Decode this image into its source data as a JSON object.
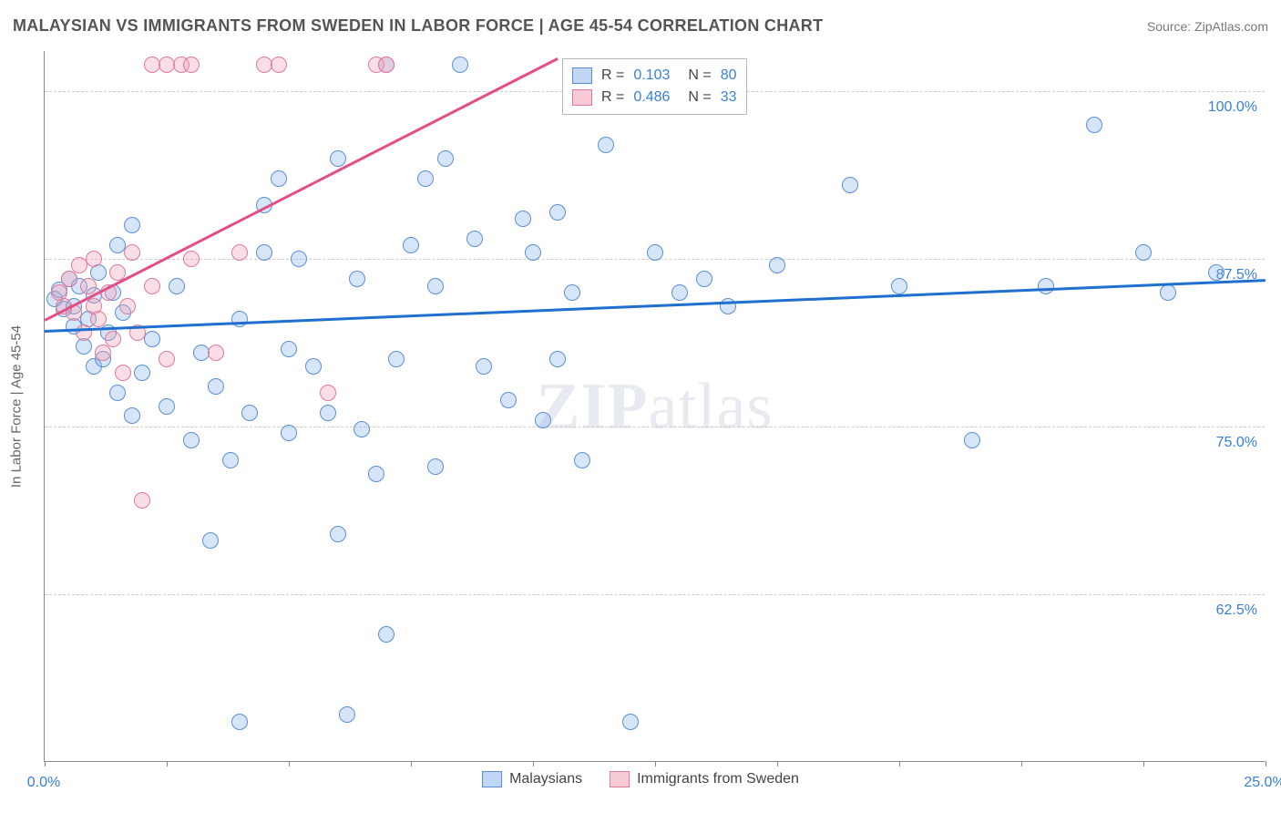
{
  "title": "MALAYSIAN VS IMMIGRANTS FROM SWEDEN IN LABOR FORCE | AGE 45-54 CORRELATION CHART",
  "source_label": "Source: ZipAtlas.com",
  "y_axis_title": "In Labor Force | Age 45-54",
  "watermark_bold": "ZIP",
  "watermark_rest": "atlas",
  "chart": {
    "type": "scatter",
    "xlim": [
      0,
      25
    ],
    "ylim": [
      50,
      103
    ],
    "x_ticks": [
      0,
      2.5,
      5,
      7.5,
      10,
      12.5,
      15,
      17.5,
      20,
      22.5,
      25
    ],
    "x_tick_labels": {
      "0": "0.0%",
      "25": "25.0%"
    },
    "y_ticks": [
      62.5,
      75.0,
      87.5,
      100.0
    ],
    "y_tick_labels": [
      "62.5%",
      "75.0%",
      "87.5%",
      "100.0%"
    ],
    "grid_color": "#cccccc",
    "background_color": "#ffffff",
    "axis_color": "#888888",
    "label_color": "#377fd9",
    "marker_radius": 9,
    "marker_stroke_width": 1.2,
    "series": [
      {
        "name": "Malaysians",
        "fill": "rgba(140,180,235,0.35)",
        "stroke": "#5a8fd6",
        "trend_color": "#1f6fd0",
        "R": 0.103,
        "N": 80,
        "trend": {
          "x1": 0,
          "y1": 82.2,
          "x2": 25,
          "y2": 86.0
        },
        "points": [
          [
            0.2,
            84.5
          ],
          [
            0.3,
            85.2
          ],
          [
            0.4,
            83.8
          ],
          [
            0.5,
            86.0
          ],
          [
            0.6,
            84.0
          ],
          [
            0.6,
            82.5
          ],
          [
            0.7,
            85.5
          ],
          [
            0.8,
            81.0
          ],
          [
            0.9,
            83.0
          ],
          [
            1.0,
            84.8
          ],
          [
            1.0,
            79.5
          ],
          [
            1.1,
            86.5
          ],
          [
            1.2,
            80.0
          ],
          [
            1.3,
            82.0
          ],
          [
            1.4,
            85.0
          ],
          [
            1.5,
            88.5
          ],
          [
            1.5,
            77.5
          ],
          [
            1.6,
            83.5
          ],
          [
            1.8,
            90.0
          ],
          [
            1.8,
            75.8
          ],
          [
            2.0,
            79.0
          ],
          [
            2.2,
            81.5
          ],
          [
            2.5,
            76.5
          ],
          [
            2.7,
            85.5
          ],
          [
            3.0,
            74.0
          ],
          [
            3.2,
            80.5
          ],
          [
            3.4,
            66.5
          ],
          [
            3.5,
            78.0
          ],
          [
            3.8,
            72.5
          ],
          [
            4.0,
            83.0
          ],
          [
            4.0,
            53.0
          ],
          [
            4.2,
            76.0
          ],
          [
            4.5,
            91.5
          ],
          [
            4.5,
            88.0
          ],
          [
            4.8,
            93.5
          ],
          [
            5.0,
            80.8
          ],
          [
            5.0,
            74.5
          ],
          [
            5.2,
            87.5
          ],
          [
            5.5,
            79.5
          ],
          [
            5.8,
            76.0
          ],
          [
            6.0,
            95.0
          ],
          [
            6.0,
            67.0
          ],
          [
            6.2,
            53.5
          ],
          [
            6.4,
            86.0
          ],
          [
            6.5,
            74.8
          ],
          [
            6.8,
            71.5
          ],
          [
            7.0,
            102.0
          ],
          [
            7.0,
            59.5
          ],
          [
            7.2,
            80.0
          ],
          [
            7.5,
            88.5
          ],
          [
            7.8,
            93.5
          ],
          [
            8.0,
            85.5
          ],
          [
            8.0,
            72.0
          ],
          [
            8.2,
            95.0
          ],
          [
            8.5,
            102.0
          ],
          [
            8.8,
            89.0
          ],
          [
            9.0,
            79.5
          ],
          [
            9.5,
            77.0
          ],
          [
            9.8,
            90.5
          ],
          [
            10.0,
            88.0
          ],
          [
            10.2,
            75.5
          ],
          [
            10.5,
            91.0
          ],
          [
            10.5,
            80.0
          ],
          [
            10.8,
            85.0
          ],
          [
            11.0,
            72.5
          ],
          [
            11.5,
            96.0
          ],
          [
            12.0,
            53.0
          ],
          [
            12.5,
            88.0
          ],
          [
            13.0,
            85.0
          ],
          [
            13.5,
            86.0
          ],
          [
            14.0,
            84.0
          ],
          [
            15.0,
            87.0
          ],
          [
            16.5,
            93.0
          ],
          [
            17.5,
            85.5
          ],
          [
            19.0,
            74.0
          ],
          [
            20.5,
            85.5
          ],
          [
            21.5,
            97.5
          ],
          [
            22.5,
            88.0
          ],
          [
            23.0,
            85.0
          ],
          [
            24.0,
            86.5
          ]
        ]
      },
      {
        "name": "Immigrants from Sweden",
        "fill": "rgba(240,160,180,0.35)",
        "stroke": "#e07a9a",
        "trend_color": "#e54d87",
        "R": 0.486,
        "N": 33,
        "trend": {
          "x1": 0,
          "y1": 83.0,
          "x2": 10.5,
          "y2": 102.5
        },
        "points": [
          [
            0.3,
            85.0
          ],
          [
            0.4,
            84.0
          ],
          [
            0.5,
            86.0
          ],
          [
            0.6,
            83.5
          ],
          [
            0.7,
            87.0
          ],
          [
            0.8,
            82.0
          ],
          [
            0.9,
            85.5
          ],
          [
            1.0,
            84.0
          ],
          [
            1.0,
            87.5
          ],
          [
            1.1,
            83.0
          ],
          [
            1.2,
            80.5
          ],
          [
            1.3,
            85.0
          ],
          [
            1.4,
            81.5
          ],
          [
            1.5,
            86.5
          ],
          [
            1.6,
            79.0
          ],
          [
            1.7,
            84.0
          ],
          [
            1.8,
            88.0
          ],
          [
            1.9,
            82.0
          ],
          [
            2.0,
            69.5
          ],
          [
            2.2,
            85.5
          ],
          [
            2.2,
            102.0
          ],
          [
            2.5,
            80.0
          ],
          [
            2.5,
            102.0
          ],
          [
            2.8,
            102.0
          ],
          [
            3.0,
            87.5
          ],
          [
            3.0,
            102.0
          ],
          [
            3.5,
            80.5
          ],
          [
            4.0,
            88.0
          ],
          [
            4.5,
            102.0
          ],
          [
            4.8,
            102.0
          ],
          [
            5.8,
            77.5
          ],
          [
            6.8,
            102.0
          ],
          [
            7.0,
            102.0
          ]
        ]
      }
    ]
  },
  "stats_box": {
    "rows": [
      {
        "swatch_fill": "rgba(140,180,235,0.55)",
        "swatch_stroke": "#5a8fd6",
        "R_label": "R =",
        "R": "0.103",
        "N_label": "N =",
        "N": "80"
      },
      {
        "swatch_fill": "rgba(240,160,180,0.55)",
        "swatch_stroke": "#e07a9a",
        "R_label": "R =",
        "R": "0.486",
        "N_label": "N =",
        "N": "33"
      }
    ]
  },
  "legend": [
    {
      "swatch_fill": "rgba(140,180,235,0.55)",
      "swatch_stroke": "#5a8fd6",
      "label": "Malaysians"
    },
    {
      "swatch_fill": "rgba(240,160,180,0.55)",
      "swatch_stroke": "#e07a9a",
      "label": "Immigrants from Sweden"
    }
  ]
}
